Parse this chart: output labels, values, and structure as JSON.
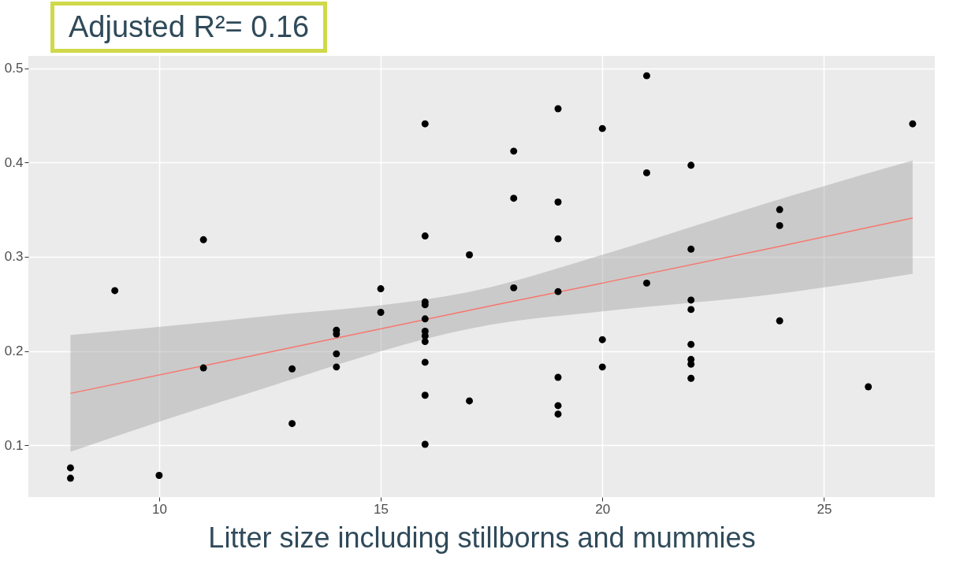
{
  "chart_data": {
    "type": "scatter",
    "title": "Adjusted R²= 0.16",
    "xlabel": "Litter size including stillborns and mummies",
    "xlim": [
      7.05,
      27.5
    ],
    "xticks": [
      10,
      15,
      20,
      25
    ],
    "ylim": [
      0.045,
      0.513
    ],
    "yticks": [
      0.1,
      0.2,
      0.3,
      0.4,
      0.5
    ],
    "grid": true,
    "series": [
      {
        "marker": "circle",
        "color": "#000000",
        "x": [
          8,
          8,
          9,
          10,
          11,
          11,
          13,
          13,
          14,
          14,
          14,
          14,
          15,
          15,
          16,
          16,
          16,
          16,
          16,
          16,
          16,
          16,
          16,
          16,
          16,
          17,
          17,
          18,
          18,
          18,
          19,
          19,
          19,
          19,
          19,
          19,
          19,
          20,
          20,
          20,
          21,
          21,
          21,
          22,
          22,
          22,
          22,
          22,
          22,
          22,
          22,
          24,
          24,
          24,
          26,
          27
        ],
        "values": [
          0.076,
          0.065,
          0.264,
          0.068,
          0.318,
          0.182,
          0.181,
          0.123,
          0.222,
          0.218,
          0.197,
          0.183,
          0.266,
          0.241,
          0.441,
          0.322,
          0.252,
          0.249,
          0.234,
          0.221,
          0.216,
          0.21,
          0.188,
          0.153,
          0.101,
          0.302,
          0.147,
          0.412,
          0.362,
          0.267,
          0.457,
          0.358,
          0.319,
          0.263,
          0.172,
          0.142,
          0.133,
          0.436,
          0.212,
          0.183,
          0.492,
          0.389,
          0.272,
          0.397,
          0.308,
          0.254,
          0.244,
          0.207,
          0.191,
          0.186,
          0.171,
          0.35,
          0.333,
          0.232,
          0.162,
          0.441
        ]
      },
      {
        "type": "line",
        "color": "#f8766d",
        "x": [
          8,
          12,
          17.5,
          20,
          24,
          27
        ],
        "values": [
          0.155,
          0.194,
          0.248,
          0.272,
          0.311,
          0.341
        ],
        "lower": [
          0.093,
          0.155,
          0.228,
          0.242,
          0.261,
          0.282
        ],
        "upper": [
          0.217,
          0.235,
          0.268,
          0.302,
          0.361,
          0.402
        ]
      }
    ]
  }
}
